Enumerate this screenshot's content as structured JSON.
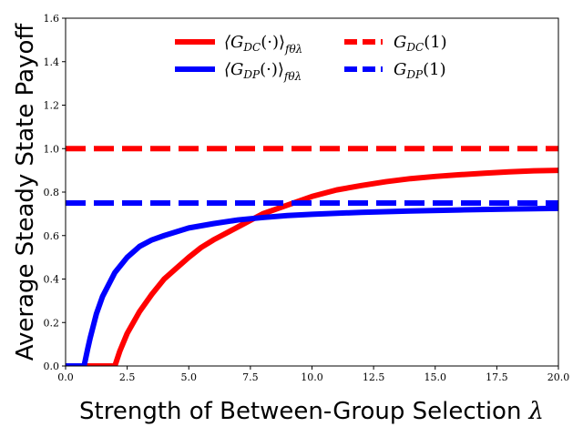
{
  "chart_data": {
    "type": "line",
    "title": "",
    "xlabel": "Strength of Between-Group Selection",
    "xlabel_symbol": "λ",
    "ylabel": "Average Steady State Payoff",
    "xlim": [
      0,
      20
    ],
    "ylim": [
      0,
      1.6
    ],
    "xticks": [
      "0.0",
      "2.5",
      "5.0",
      "7.5",
      "10.0",
      "12.5",
      "15.0",
      "17.5",
      "20.0"
    ],
    "xtick_values": [
      0,
      2.5,
      5,
      7.5,
      10,
      12.5,
      15,
      17.5,
      20
    ],
    "yticks": [
      "0.0",
      "0.2",
      "0.4",
      "0.6",
      "0.8",
      "1.0",
      "1.2",
      "1.4",
      "1.6"
    ],
    "ytick_values": [
      0,
      0.2,
      0.4,
      0.6,
      0.8,
      1.0,
      1.2,
      1.4,
      1.6
    ],
    "grid": false,
    "legend_position": "top-center",
    "series": [
      {
        "name": "⟨G_DC(·)⟩_fθλ",
        "legend_main": "⟨G",
        "legend_sub": "DC",
        "legend_tail": "(·)⟩",
        "legend_sub2": "fθλ",
        "color": "#ff0000",
        "style": "solid",
        "x": [
          0,
          2,
          2.2,
          2.5,
          3,
          3.5,
          4,
          4.5,
          5,
          5.5,
          6,
          7,
          8,
          9,
          10,
          11,
          12,
          13,
          14,
          15,
          16,
          17,
          18,
          19,
          20
        ],
        "y": [
          0,
          0,
          0.068,
          0.15,
          0.25,
          0.33,
          0.4,
          0.45,
          0.5,
          0.545,
          0.58,
          0.64,
          0.7,
          0.74,
          0.78,
          0.81,
          0.83,
          0.848,
          0.862,
          0.872,
          0.88,
          0.887,
          0.893,
          0.898,
          0.9
        ]
      },
      {
        "name": "⟨G_DP(·)⟩_fθλ",
        "legend_main": "⟨G",
        "legend_sub": "DP",
        "legend_tail": "(·)⟩",
        "legend_sub2": "fθλ",
        "color": "#0000ff",
        "style": "solid",
        "x": [
          0,
          0.75,
          0.9,
          1.0,
          1.25,
          1.5,
          2,
          2.5,
          3,
          3.5,
          4,
          5,
          6,
          7,
          8,
          9,
          10,
          12,
          14,
          16,
          18,
          20
        ],
        "y": [
          0,
          0,
          0.08,
          0.13,
          0.24,
          0.32,
          0.43,
          0.5,
          0.55,
          0.58,
          0.6,
          0.635,
          0.655,
          0.672,
          0.683,
          0.692,
          0.698,
          0.707,
          0.713,
          0.718,
          0.722,
          0.725
        ]
      },
      {
        "name": "G_DC(1)",
        "legend_main": "G",
        "legend_sub": "DC",
        "legend_tail": "(1)",
        "legend_sub2": "",
        "color": "#ff0000",
        "style": "dashed",
        "x": [
          0,
          20
        ],
        "y": [
          1.0,
          1.0
        ]
      },
      {
        "name": "G_DP(1)",
        "legend_main": "G",
        "legend_sub": "DP",
        "legend_tail": "(1)",
        "legend_sub2": "",
        "color": "#0000ff",
        "style": "dashed",
        "x": [
          0,
          20
        ],
        "y": [
          0.75,
          0.75
        ]
      }
    ]
  }
}
